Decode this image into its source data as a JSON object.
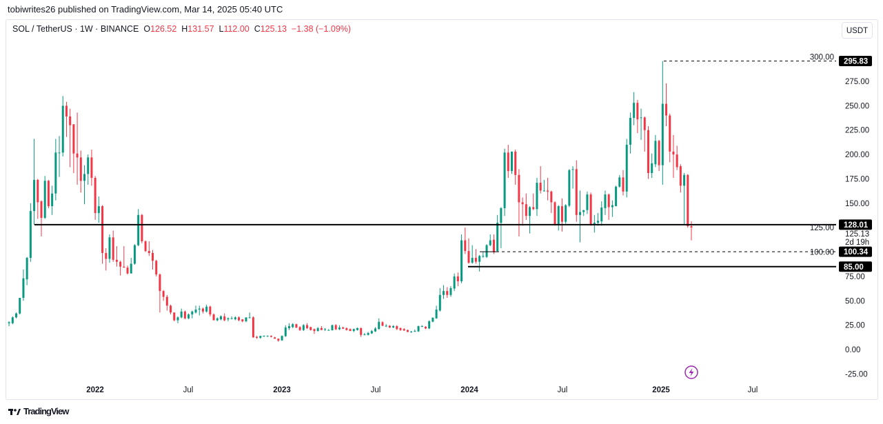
{
  "header": {
    "published": "tobiwrites26 published on TradingView.com, Mar 14, 2025 05:40 UTC"
  },
  "legend": {
    "symbol": "SOL / TetherUS · 1W · BINANCE",
    "o_label": "O",
    "o": "126.52",
    "h_label": "H",
    "h": "131.57",
    "l_label": "L",
    "l": "112.00",
    "c_label": "C",
    "c": "125.13",
    "change": "−1.38 (−1.09%)"
  },
  "currency_button": "USDT",
  "footer": {
    "brand": "TradingView"
  },
  "colors": {
    "up": "#089981",
    "down": "#f23645",
    "line": "#000000",
    "accent": "#9c27b0"
  },
  "icons": {
    "flash": "lightning-icon",
    "logo": "tradingview-logo-icon"
  },
  "chart_data": {
    "type": "candlestick",
    "interval": "1W",
    "ylim": [
      -35,
      305
    ],
    "y_ticks": [
      "300.00",
      "275.00",
      "250.00",
      "225.00",
      "200.00",
      "175.00",
      "150.00",
      "125.00",
      "100.00",
      "75.00",
      "50.00",
      "25.00",
      "0.00",
      "-25.00"
    ],
    "x_ticks": [
      {
        "label": "2022",
        "year": true
      },
      {
        "label": "Jul",
        "year": false
      },
      {
        "label": "2023",
        "year": true
      },
      {
        "label": "Jul",
        "year": false
      },
      {
        "label": "2024",
        "year": true
      },
      {
        "label": "Jul",
        "year": false
      },
      {
        "label": "2025",
        "year": true
      },
      {
        "label": "Jul",
        "year": false
      }
    ],
    "price_labels": [
      {
        "value": 295.83,
        "text": "295.83",
        "style": "dashed"
      },
      {
        "value": 128.01,
        "text": "128.01",
        "style": "solid"
      },
      {
        "value": 100.34,
        "text": "100.34",
        "style": "dashed"
      },
      {
        "value": 85.0,
        "text": "85.00",
        "style": "solid"
      }
    ],
    "last_price": {
      "value": 125.13,
      "text": "125.13",
      "countdown": "2d 19h"
    },
    "candles_ohlc": [
      [
        27,
        29,
        24,
        28
      ],
      [
        27,
        34,
        26,
        33
      ],
      [
        33,
        38,
        32,
        37
      ],
      [
        37,
        53,
        36,
        53
      ],
      [
        53,
        82,
        50,
        73
      ],
      [
        72,
        95,
        66,
        94
      ],
      [
        94,
        150,
        90,
        142
      ],
      [
        142,
        216,
        128,
        174
      ],
      [
        174,
        175,
        134,
        151
      ],
      [
        152,
        153,
        116,
        135
      ],
      [
        135,
        178,
        134,
        173
      ],
      [
        173,
        174,
        145,
        147
      ],
      [
        147,
        168,
        138,
        160
      ],
      [
        160,
        216,
        153,
        202
      ],
      [
        202,
        219,
        177,
        202
      ],
      [
        202,
        260,
        198,
        250
      ],
      [
        250,
        254,
        218,
        239
      ],
      [
        239,
        247,
        187,
        230
      ],
      [
        231,
        231,
        181,
        201
      ],
      [
        201,
        243,
        169,
        197
      ],
      [
        197,
        204,
        161,
        173
      ],
      [
        173,
        189,
        149,
        180
      ],
      [
        180,
        200,
        169,
        197
      ],
      [
        197,
        205,
        168,
        176
      ],
      [
        176,
        178,
        133,
        140
      ],
      [
        140,
        157,
        130,
        147
      ],
      [
        147,
        148,
        88,
        99
      ],
      [
        99,
        104,
        81,
        93
      ],
      [
        93,
        118,
        89,
        115
      ],
      [
        115,
        122,
        90,
        92
      ],
      [
        92,
        106,
        85,
        90
      ],
      [
        90,
        91,
        76,
        85
      ],
      [
        85,
        106,
        84,
        84
      ],
      [
        84,
        86,
        77,
        78
      ],
      [
        78,
        94,
        78,
        88
      ],
      [
        88,
        108,
        87,
        107
      ],
      [
        107,
        144,
        106,
        138
      ],
      [
        138,
        139,
        109,
        111
      ],
      [
        111,
        112,
        100,
        101
      ],
      [
        101,
        111,
        96,
        99
      ],
      [
        99,
        102,
        82,
        91
      ],
      [
        91,
        92,
        75,
        77
      ],
      [
        77,
        78,
        38,
        60
      ],
      [
        60,
        61,
        50,
        54
      ],
      [
        54,
        56,
        40,
        45
      ],
      [
        45,
        46,
        36,
        38
      ],
      [
        38,
        38,
        29,
        30
      ],
      [
        30,
        34,
        27,
        33
      ],
      [
        33,
        42,
        32,
        39
      ],
      [
        39,
        40,
        31,
        32
      ],
      [
        32,
        37,
        31,
        36
      ],
      [
        36,
        40,
        32,
        39
      ],
      [
        38,
        45,
        37,
        41
      ],
      [
        41,
        45,
        35,
        42
      ],
      [
        42,
        43,
        37,
        39
      ],
      [
        39,
        46,
        38,
        44
      ],
      [
        44,
        45,
        34,
        36
      ],
      [
        36,
        37,
        30,
        30
      ],
      [
        30,
        33,
        29,
        32
      ],
      [
        31,
        35,
        30,
        34
      ],
      [
        34,
        37,
        29,
        30
      ],
      [
        31,
        33,
        29,
        32
      ],
      [
        32,
        34,
        31,
        32
      ],
      [
        31,
        34,
        30,
        33
      ],
      [
        33,
        34,
        29,
        30
      ],
      [
        31,
        31,
        28,
        29
      ],
      [
        29,
        33,
        28,
        33
      ],
      [
        33,
        38,
        32,
        33
      ],
      [
        33,
        34,
        12,
        12.5
      ],
      [
        13,
        14,
        11,
        12
      ],
      [
        12,
        14,
        11,
        14
      ],
      [
        14,
        14.5,
        13,
        14
      ],
      [
        14,
        14.5,
        13,
        14
      ],
      [
        14,
        14.5,
        12.5,
        13
      ],
      [
        12.5,
        13,
        11,
        11.1
      ],
      [
        11.1,
        11.3,
        8,
        9.2
      ],
      [
        9.4,
        14.5,
        9,
        14
      ],
      [
        13.7,
        25,
        13,
        22.6
      ],
      [
        22,
        27,
        20,
        24
      ],
      [
        23,
        27,
        22,
        26
      ],
      [
        26,
        26.5,
        22,
        22.6
      ],
      [
        23,
        24,
        19,
        20
      ],
      [
        20,
        26,
        19,
        25
      ],
      [
        25,
        27,
        21,
        22
      ],
      [
        23,
        23.5,
        19.5,
        20
      ],
      [
        21,
        21.5,
        16,
        19
      ],
      [
        19,
        23,
        18.5,
        22
      ],
      [
        22,
        24,
        20,
        20
      ],
      [
        21,
        22,
        19,
        21
      ],
      [
        20,
        21,
        19.5,
        20
      ],
      [
        19.8,
        25.5,
        19.5,
        25
      ],
      [
        25,
        26,
        20,
        20.7
      ],
      [
        20.7,
        25,
        20,
        22.6
      ],
      [
        22.6,
        23.5,
        21,
        21.4
      ],
      [
        22,
        22.5,
        19.5,
        20
      ],
      [
        21,
        21.5,
        19,
        19
      ],
      [
        19,
        21.5,
        18,
        21
      ],
      [
        20,
        22.5,
        19.5,
        22
      ],
      [
        22,
        22.5,
        13,
        15
      ],
      [
        15,
        17,
        14.5,
        15.6
      ],
      [
        15,
        18,
        14.5,
        17
      ],
      [
        16.5,
        20,
        16,
        19
      ],
      [
        18.6,
        23,
        18,
        21.6
      ],
      [
        21,
        32,
        20.5,
        28.4
      ],
      [
        28,
        29,
        24,
        24.4
      ],
      [
        24.4,
        26,
        23,
        24.4
      ],
      [
        24.4,
        25,
        22,
        22.6
      ],
      [
        22.6,
        25,
        22,
        24
      ],
      [
        24,
        25,
        20,
        21
      ],
      [
        22,
        22.5,
        19,
        20
      ],
      [
        21,
        22,
        19,
        19.6
      ],
      [
        20,
        20.5,
        18,
        18
      ],
      [
        18.6,
        19,
        17,
        18.6
      ],
      [
        18.6,
        20.5,
        18,
        19
      ],
      [
        18.6,
        24.5,
        18,
        24
      ],
      [
        24,
        25,
        23,
        24
      ],
      [
        23.4,
        24,
        21,
        21.6
      ],
      [
        21.6,
        30,
        21,
        29
      ],
      [
        28.6,
        33,
        28,
        32.6
      ],
      [
        32,
        45,
        31.5,
        41
      ],
      [
        40,
        63,
        39,
        56
      ],
      [
        56,
        66,
        52,
        60
      ],
      [
        60,
        64,
        53,
        56
      ],
      [
        56,
        65,
        54,
        63
      ],
      [
        62.5,
        78,
        60,
        75
      ],
      [
        75,
        79,
        65,
        70
      ],
      [
        70,
        118,
        68,
        112
      ],
      [
        112,
        125,
        98,
        101
      ],
      [
        101,
        114,
        88,
        89
      ],
      [
        89,
        107,
        88,
        94
      ],
      [
        94,
        103,
        88,
        90
      ],
      [
        90,
        97,
        80,
        96
      ],
      [
        96,
        100,
        94,
        96
      ],
      [
        95,
        108,
        94,
        107
      ],
      [
        107,
        118,
        106,
        112
      ],
      [
        112.6,
        118,
        98,
        99.7
      ],
      [
        101,
        138,
        100,
        130
      ],
      [
        130,
        146,
        104,
        145
      ],
      [
        145,
        206,
        137,
        202
      ],
      [
        202,
        210,
        176,
        183
      ],
      [
        183,
        203,
        180,
        203
      ],
      [
        203,
        205,
        169,
        179
      ],
      [
        179,
        185,
        116,
        151
      ],
      [
        151,
        156,
        127,
        149
      ],
      [
        149,
        160,
        133,
        137
      ],
      [
        137,
        147,
        119,
        146
      ],
      [
        146,
        160,
        143,
        144
      ],
      [
        144,
        176,
        137,
        171
      ],
      [
        171,
        188,
        160,
        163
      ],
      [
        163,
        174,
        162,
        163
      ],
      [
        163,
        176,
        153,
        162
      ],
      [
        162,
        163,
        140,
        151
      ],
      [
        151,
        152,
        127,
        128
      ],
      [
        128,
        148,
        122,
        147
      ],
      [
        147,
        155,
        121,
        131
      ],
      [
        131,
        149,
        129,
        148
      ],
      [
        147.5,
        185,
        146,
        184
      ],
      [
        185,
        188,
        165,
        185
      ],
      [
        185,
        194,
        131,
        138
      ],
      [
        138,
        163,
        110,
        141
      ],
      [
        141,
        143,
        137,
        143
      ],
      [
        143,
        162,
        139,
        159
      ],
      [
        159,
        161,
        127,
        128
      ],
      [
        128,
        138,
        120,
        130
      ],
      [
        130,
        140,
        127,
        132
      ],
      [
        131.5,
        152,
        127,
        145.6
      ],
      [
        145,
        163,
        138,
        159
      ],
      [
        159,
        160,
        133,
        146
      ],
      [
        146,
        153,
        136,
        148
      ],
      [
        147,
        168,
        147,
        167
      ],
      [
        167,
        179,
        166,
        176.5
      ],
      [
        176.5,
        184,
        158,
        162
      ],
      [
        162,
        216,
        156,
        210
      ],
      [
        210,
        243,
        201,
        237.5
      ],
      [
        237.5,
        264,
        230,
        253
      ],
      [
        253,
        256,
        222,
        236
      ],
      [
        238,
        247,
        215,
        238
      ],
      [
        238,
        239,
        203,
        225
      ],
      [
        225,
        229,
        175,
        181
      ],
      [
        181,
        201,
        176,
        191
      ],
      [
        190,
        220,
        187,
        214
      ],
      [
        214,
        215,
        183,
        189
      ],
      [
        189,
        295.83,
        169,
        252
      ],
      [
        252,
        273,
        229,
        240
      ],
      [
        240,
        242,
        192,
        203
      ],
      [
        203,
        220,
        176,
        200
      ],
      [
        200,
        209,
        184,
        187
      ],
      [
        188,
        190,
        161,
        168
      ],
      [
        168,
        181,
        128,
        179
      ],
      [
        179,
        180,
        125,
        126.5
      ],
      [
        126.52,
        131.57,
        112,
        125.13
      ]
    ]
  }
}
